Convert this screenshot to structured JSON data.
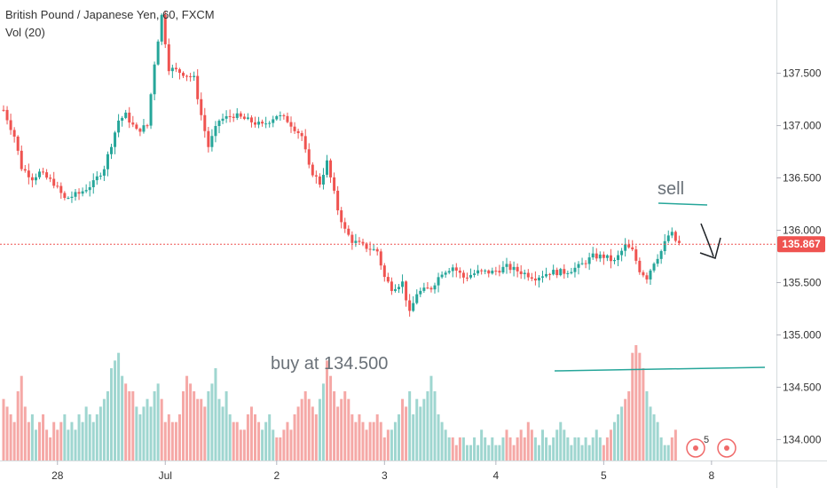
{
  "header": {
    "symbol_line": "British Pound / Japanese Yen, 60, FXCM",
    "volume_indicator": "Vol (20)"
  },
  "price_tag": "135.867",
  "annotations": {
    "sell": "sell",
    "buy": "buy at 134.500",
    "buy_level": 134.5,
    "alert_badge_count": "5"
  },
  "colors": {
    "up": "#26a69a",
    "down": "#ef5350",
    "volume_up": "#9fd6d0",
    "volume_down": "#f5a8a6",
    "last_price_line": "#ef5350",
    "drawing": "#26a69a",
    "arrow": "#1e2226",
    "axis_text": "#333333"
  },
  "chart_data": {
    "type": "candlestick",
    "instrument": "British Pound / Japanese Yen",
    "interval": "60",
    "source": "FXCM",
    "last_price": 135.867,
    "ylim": [
      133.8,
      138.2
    ],
    "y_ticks": [
      "137.500",
      "137.000",
      "136.500",
      "136.000",
      "135.500",
      "135.000",
      "134.500",
      "134.000"
    ],
    "y_tick_values": [
      137.5,
      137.0,
      136.5,
      136.0,
      135.5,
      135.0,
      134.5,
      134.0
    ],
    "x_ticks": [
      "28",
      "Jul",
      "2",
      "3",
      "4",
      "5",
      "8"
    ],
    "x_tick_index": [
      15,
      45,
      76,
      106,
      137,
      167,
      197
    ],
    "control_points": [
      [
        0,
        137.15
      ],
      [
        3,
        136.9
      ],
      [
        5,
        136.6
      ],
      [
        8,
        136.5
      ],
      [
        10,
        136.55
      ],
      [
        14,
        136.45
      ],
      [
        17,
        136.3
      ],
      [
        21,
        136.35
      ],
      [
        25,
        136.45
      ],
      [
        28,
        136.6
      ],
      [
        32,
        137.05
      ],
      [
        34,
        137.1
      ],
      [
        37,
        136.95
      ],
      [
        40,
        137.0
      ],
      [
        42,
        137.6
      ],
      [
        44,
        138.05
      ],
      [
        46,
        137.55
      ],
      [
        50,
        137.5
      ],
      [
        53,
        137.45
      ],
      [
        55,
        137.1
      ],
      [
        57,
        136.8
      ],
      [
        60,
        137.05
      ],
      [
        64,
        137.1
      ],
      [
        68,
        137.05
      ],
      [
        72,
        137.0
      ],
      [
        76,
        137.1
      ],
      [
        79,
        137.05
      ],
      [
        83,
        136.9
      ],
      [
        85,
        136.6
      ],
      [
        88,
        136.45
      ],
      [
        90,
        136.65
      ],
      [
        93,
        136.2
      ],
      [
        95,
        136.0
      ],
      [
        97,
        135.9
      ],
      [
        100,
        135.85
      ],
      [
        104,
        135.8
      ],
      [
        106,
        135.55
      ],
      [
        108,
        135.45
      ],
      [
        111,
        135.5
      ],
      [
        113,
        135.2
      ],
      [
        115,
        135.4
      ],
      [
        119,
        135.45
      ],
      [
        122,
        135.6
      ],
      [
        125,
        135.65
      ],
      [
        128,
        135.55
      ],
      [
        132,
        135.6
      ],
      [
        136,
        135.6
      ],
      [
        140,
        135.65
      ],
      [
        144,
        135.6
      ],
      [
        148,
        135.55
      ],
      [
        152,
        135.6
      ],
      [
        156,
        135.6
      ],
      [
        160,
        135.65
      ],
      [
        164,
        135.75
      ],
      [
        167,
        135.75
      ],
      [
        170,
        135.7
      ],
      [
        173,
        135.85
      ],
      [
        175,
        135.8
      ],
      [
        177,
        135.62
      ],
      [
        179,
        135.55
      ],
      [
        181,
        135.7
      ],
      [
        183,
        135.8
      ],
      [
        185,
        135.95
      ],
      [
        186,
        135.96
      ],
      [
        187,
        135.9
      ],
      [
        188,
        135.87
      ]
    ],
    "volume_series": [
      8,
      7,
      6,
      5,
      9,
      11,
      7,
      5,
      6,
      4,
      5,
      6,
      4,
      3,
      5,
      4,
      5,
      6,
      4,
      5,
      4,
      6,
      5,
      7,
      6,
      5,
      6,
      7,
      8,
      9,
      12,
      13,
      14,
      11,
      10,
      9,
      9,
      7,
      6,
      7,
      8,
      7,
      9,
      10,
      8,
      5,
      6,
      5,
      5,
      6,
      9,
      11,
      10,
      9,
      8,
      8,
      7,
      9,
      10,
      12,
      8,
      7,
      9,
      6,
      5,
      5,
      4,
      4,
      6,
      7,
      6,
      5,
      4,
      5,
      6,
      4,
      3,
      3,
      4,
      5,
      4,
      6,
      7,
      8,
      9,
      8,
      7,
      6,
      8,
      10,
      13,
      11,
      9,
      7,
      8,
      9,
      8,
      6,
      5,
      6,
      5,
      4,
      5,
      5,
      6,
      5,
      3,
      4,
      4,
      5,
      6,
      8,
      7,
      9,
      6,
      8,
      7,
      8,
      9,
      11,
      9,
      6,
      5,
      4,
      3,
      3,
      2,
      3,
      3,
      2,
      2,
      3,
      2,
      4,
      3,
      2,
      3,
      2,
      2,
      3,
      4,
      3,
      2,
      3,
      4,
      3,
      5,
      4,
      3,
      2,
      4,
      3,
      2,
      3,
      4,
      5,
      4,
      3,
      2,
      3,
      3,
      2,
      3,
      2,
      3,
      4,
      3,
      2,
      3,
      4,
      5,
      6,
      7,
      8,
      9,
      14,
      15,
      14,
      12,
      9,
      7,
      6,
      5,
      3,
      2,
      2,
      3,
      4
    ]
  }
}
